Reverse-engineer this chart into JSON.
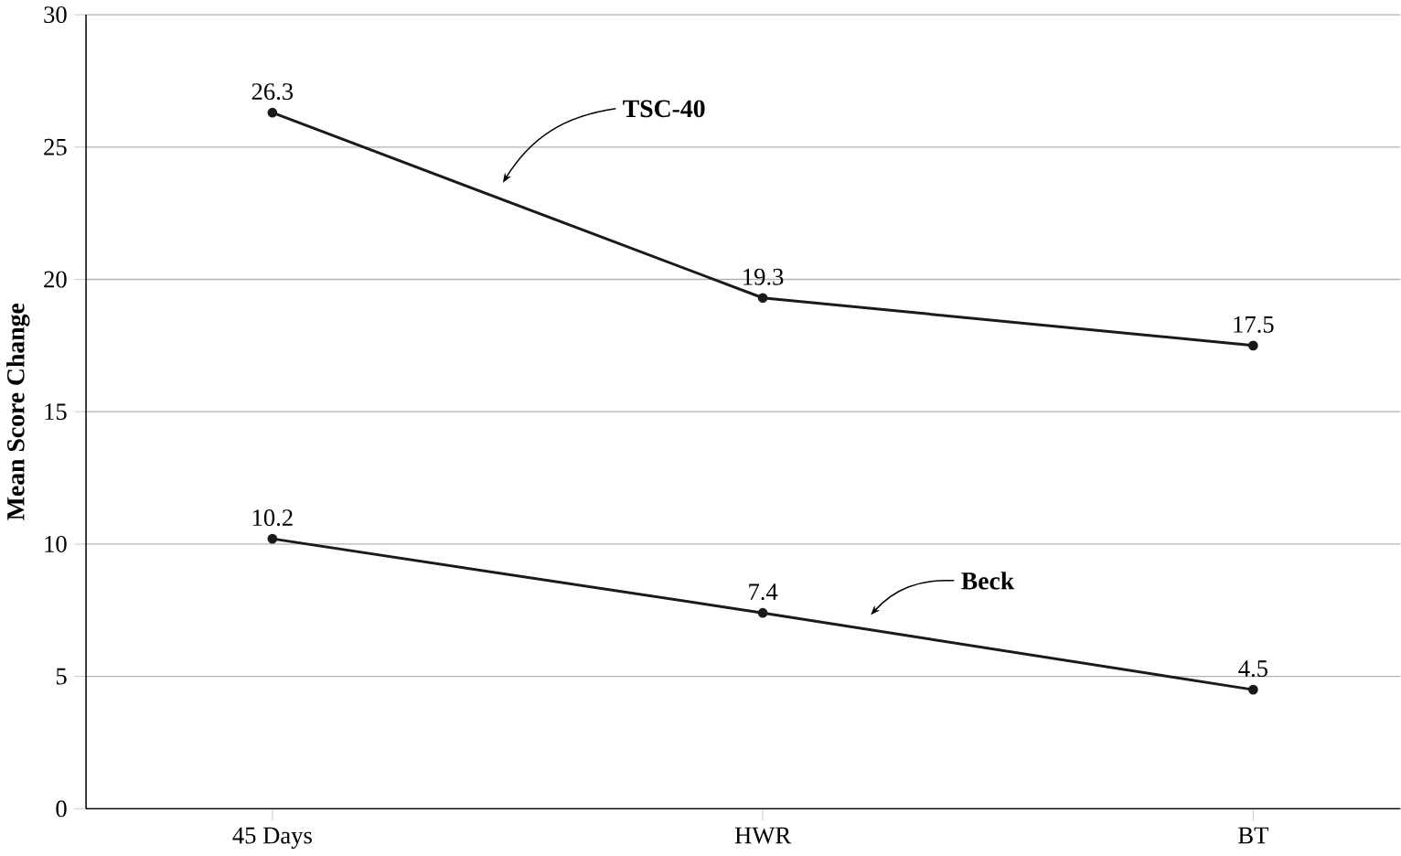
{
  "chart_data": {
    "type": "line",
    "ylabel": "Mean Score Change",
    "categories": [
      "45 Days",
      "HWR",
      "BT"
    ],
    "series": [
      {
        "name": "TSC-40",
        "color": "#1a1a1a",
        "values": [
          26.3,
          19.3,
          17.5
        ]
      },
      {
        "name": "Beck",
        "color": "#1a1a1a",
        "values": [
          10.2,
          7.4,
          4.5
        ]
      }
    ],
    "ylim": [
      0,
      30
    ],
    "yticks": [
      0,
      5,
      10,
      15,
      20,
      25,
      30
    ],
    "grid": "y",
    "marker": "circle",
    "line_style": "solid",
    "data_labels": true,
    "legend": false
  }
}
